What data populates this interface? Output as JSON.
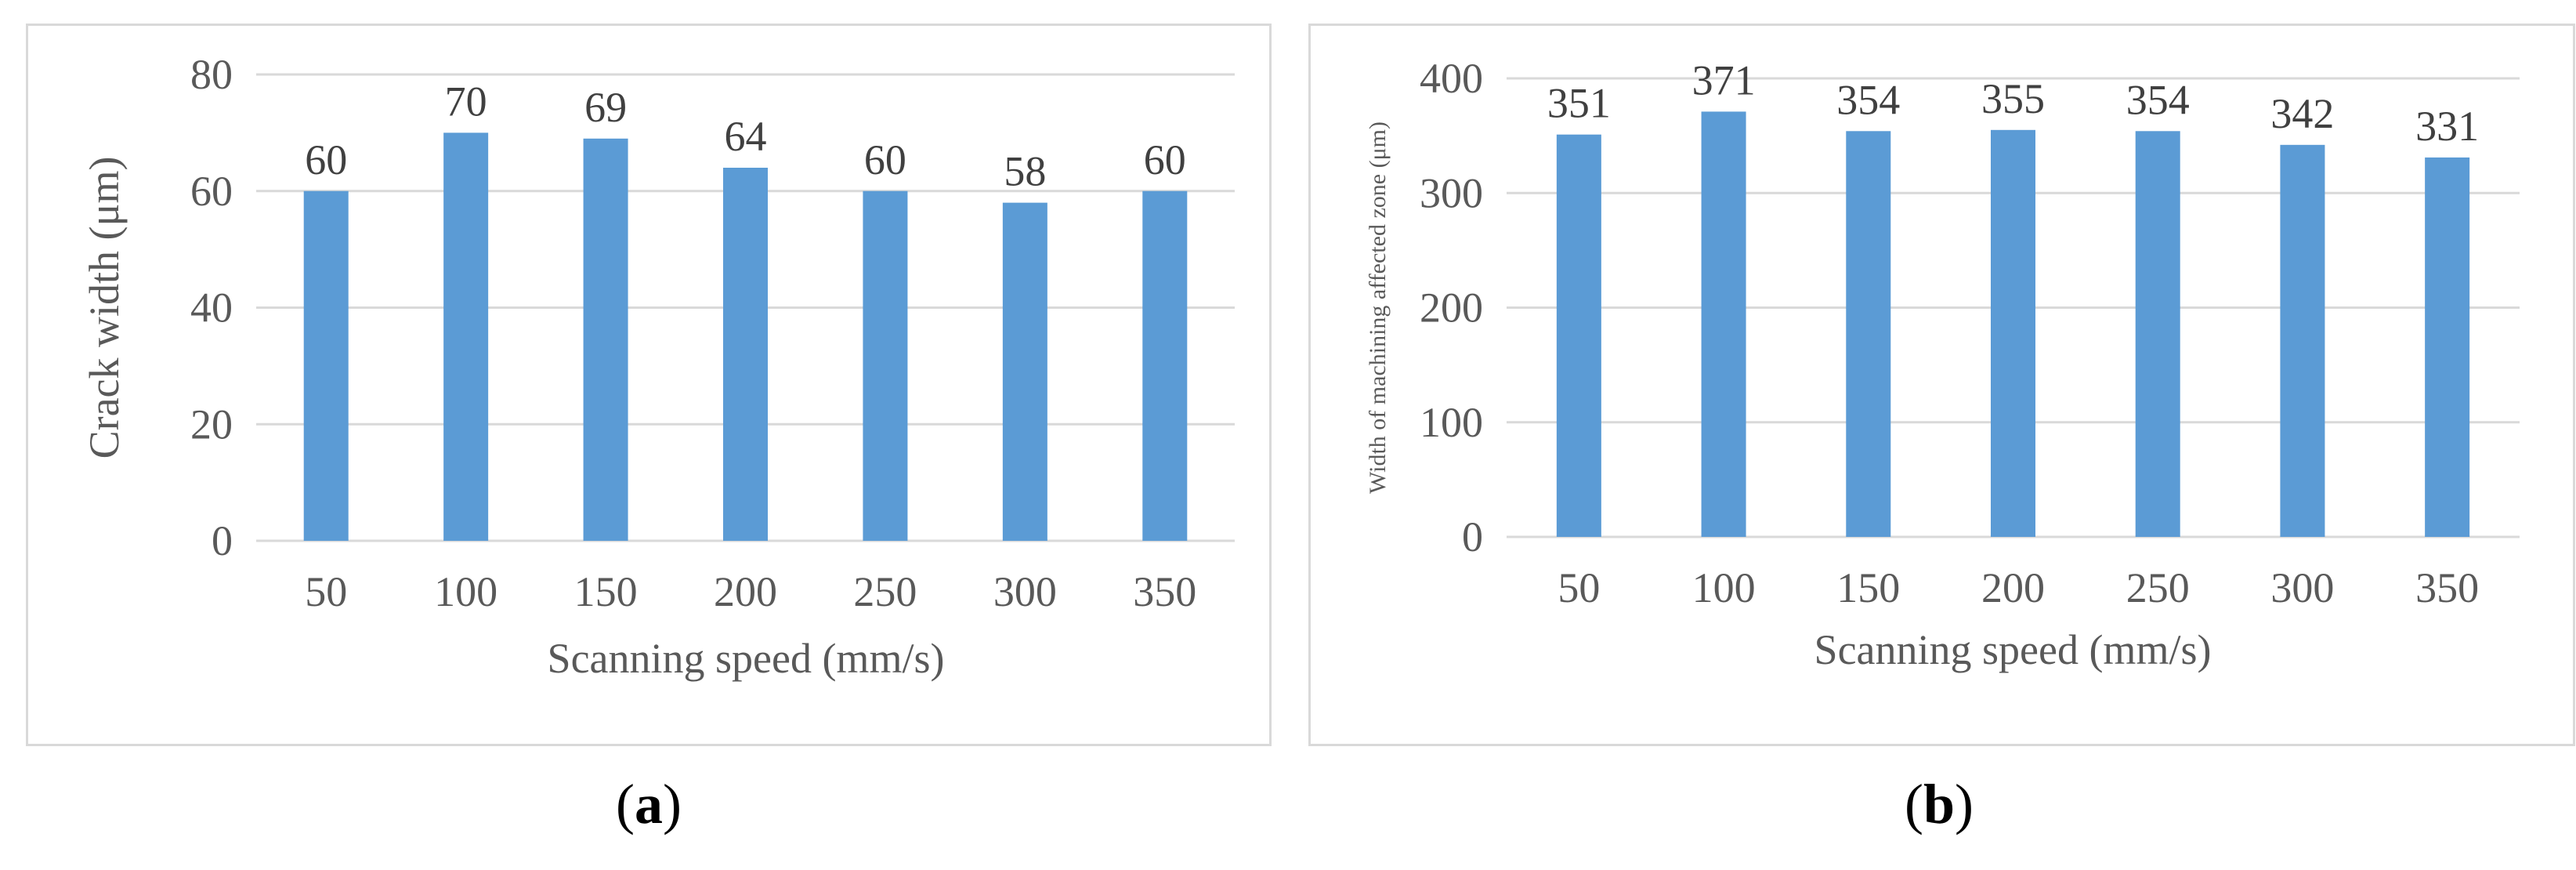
{
  "colors": {
    "bar": "#5b9bd5",
    "grid": "#d9d9d9",
    "border": "#d9d9d9",
    "text": "#595959"
  },
  "labels": {
    "a": {
      "open": "(",
      "letter": "a",
      "close": ")"
    },
    "b": {
      "open": "(",
      "letter": "b",
      "close": ")"
    }
  },
  "chart_data": [
    {
      "type": "bar",
      "categories": [
        "50",
        "100",
        "150",
        "200",
        "250",
        "300",
        "350"
      ],
      "values": [
        60,
        70,
        69,
        64,
        60,
        58,
        60
      ],
      "title": "",
      "xlabel": "Scanning speed (mm/s)",
      "ylabel": "Crack width (μm)",
      "ylim": [
        0,
        80
      ],
      "yticks": [
        0,
        20,
        40,
        60,
        80
      ],
      "grid": true,
      "data_labels": true,
      "legend": "none"
    },
    {
      "type": "bar",
      "categories": [
        "50",
        "100",
        "150",
        "200",
        "250",
        "300",
        "350"
      ],
      "values": [
        351,
        371,
        354,
        355,
        354,
        342,
        331
      ],
      "title": "",
      "xlabel": "Scanning speed (mm/s)",
      "ylabel": "Width of machining affected zone (μm)",
      "ylim": [
        0,
        400
      ],
      "yticks": [
        0,
        100,
        200,
        300,
        400
      ],
      "grid": true,
      "data_labels": true,
      "legend": "none"
    }
  ]
}
